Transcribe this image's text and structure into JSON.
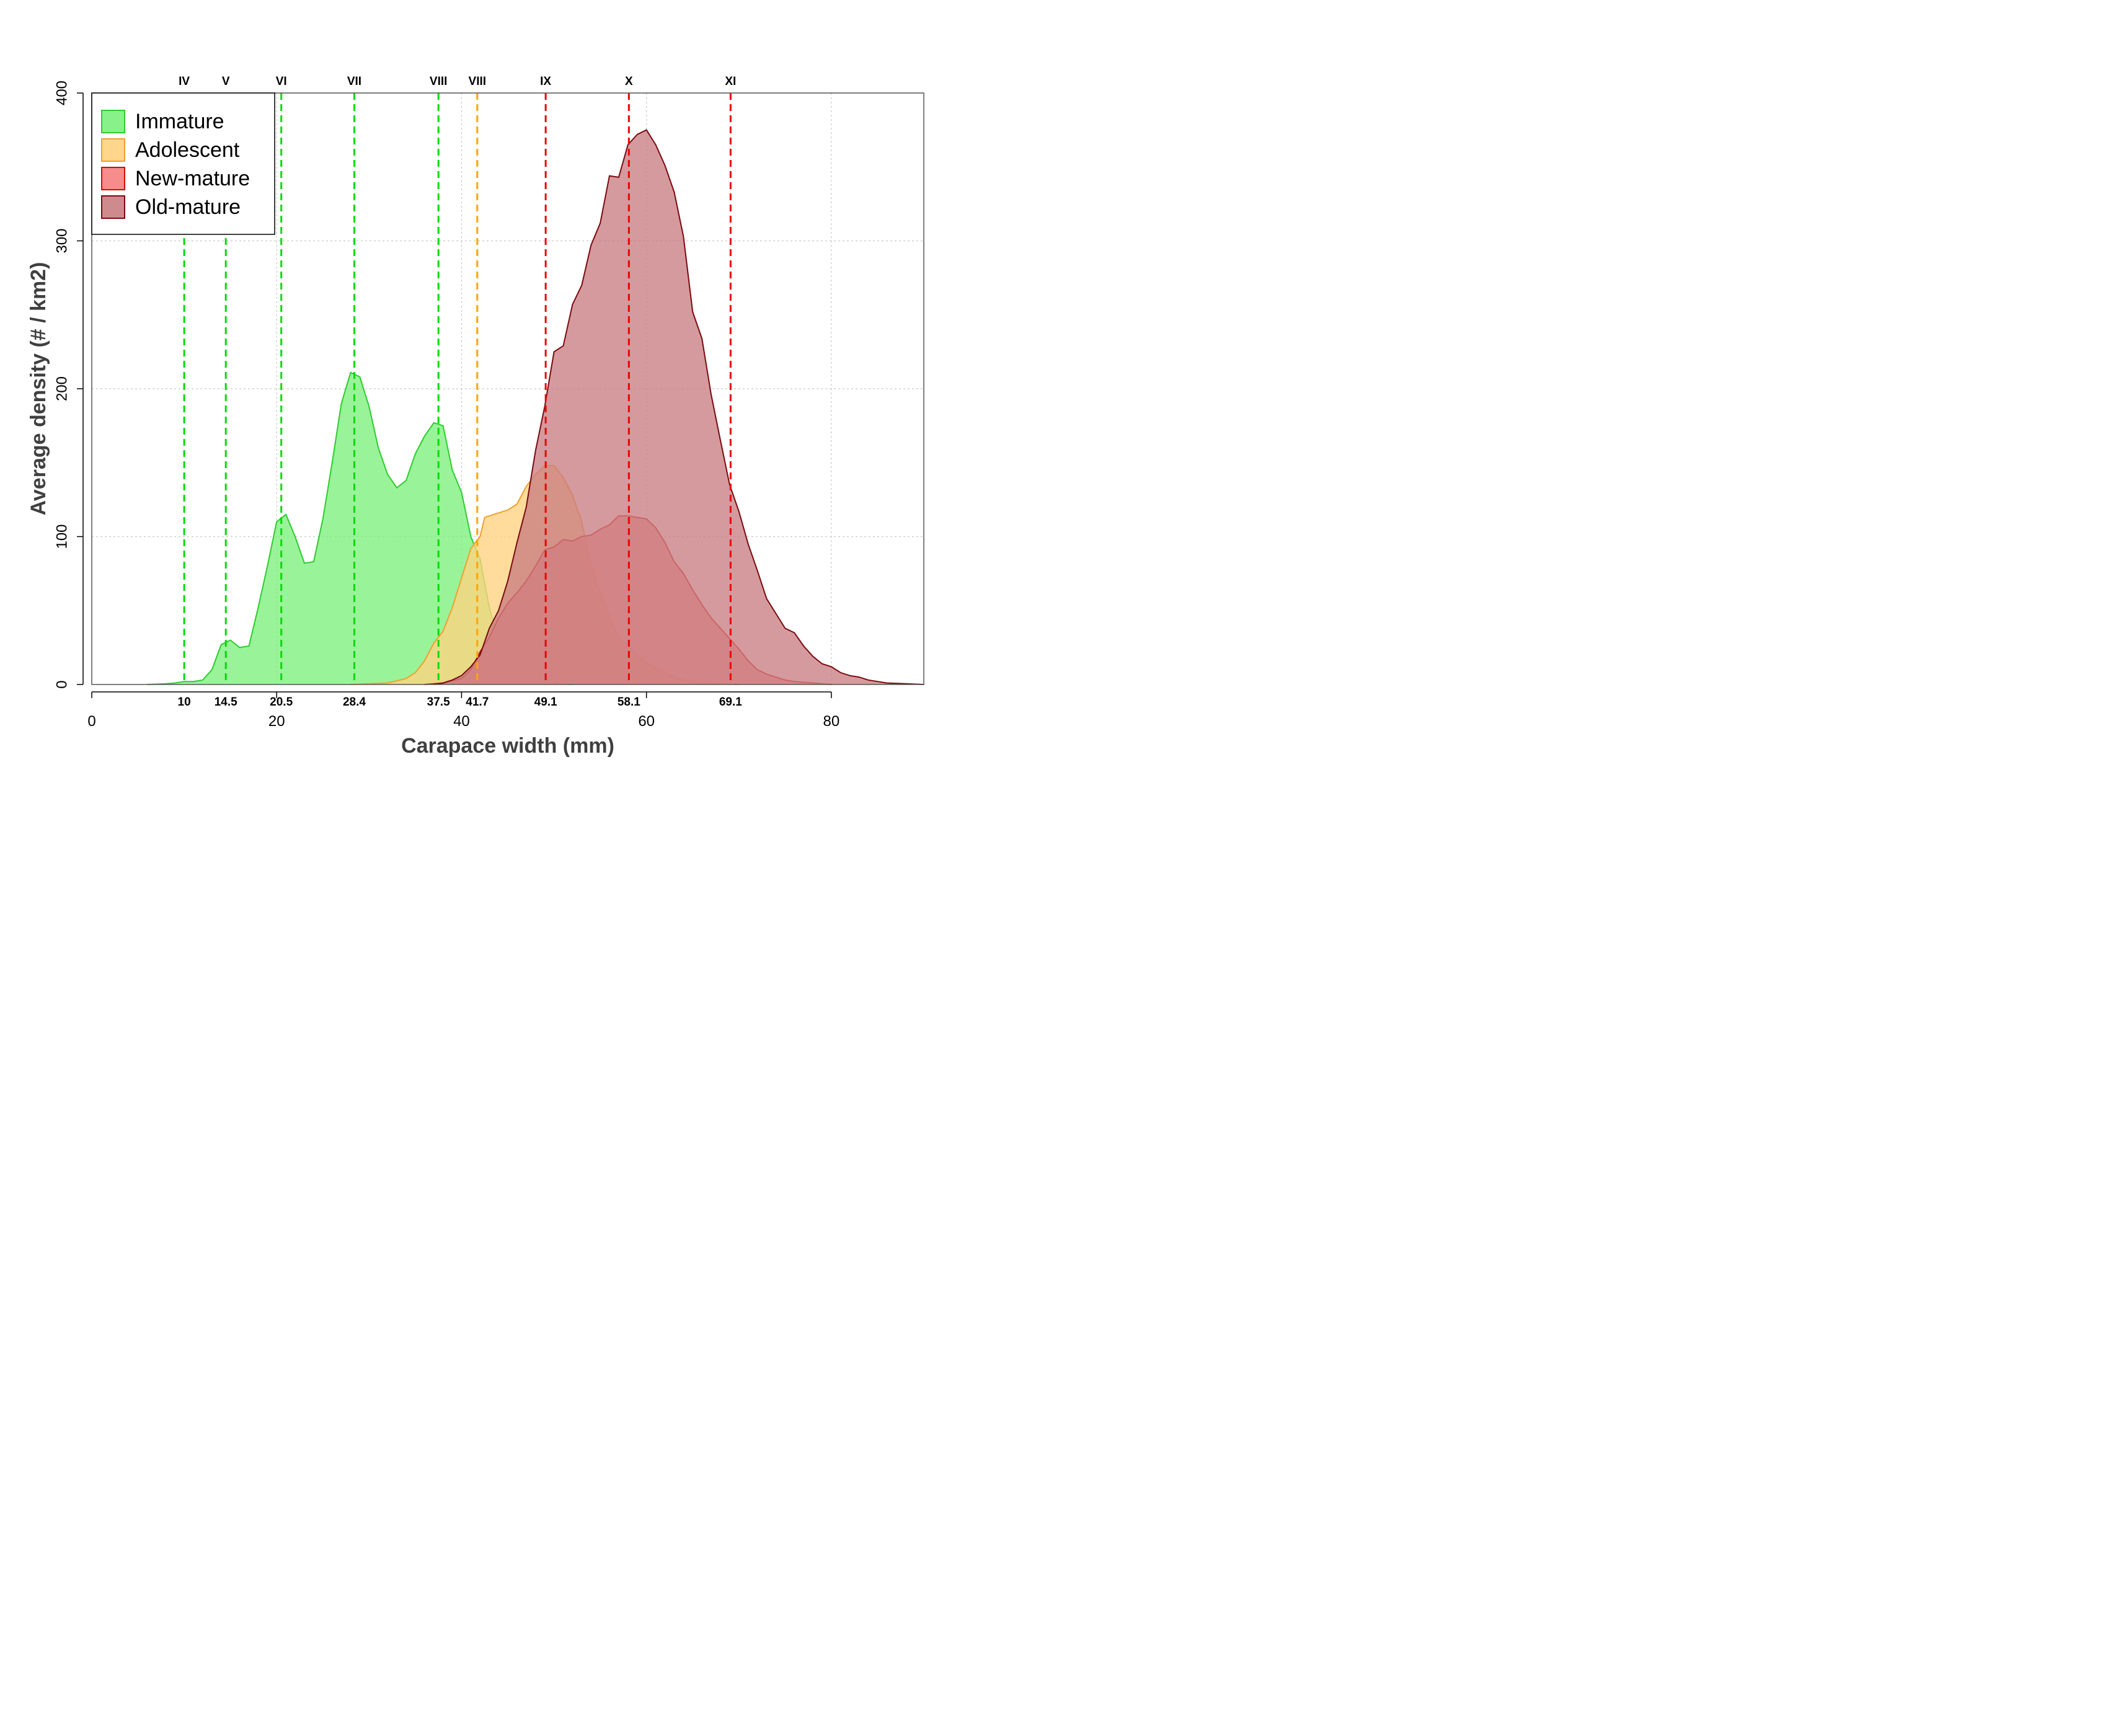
{
  "chart_data": {
    "type": "area",
    "xlabel": "Carapace width (mm)",
    "ylabel": "Average density (# / km2)",
    "xlim": [
      0,
      90
    ],
    "ylim": [
      0,
      400
    ],
    "x_ticks": [
      0,
      20,
      40,
      60,
      80
    ],
    "y_ticks": [
      0,
      100,
      200,
      300,
      400
    ],
    "grid": true,
    "legend_position": "top-left",
    "series": [
      {
        "name": "Immature",
        "fill": "#7CF07C",
        "line": "#2ECC2E",
        "points": [
          [
            6,
            0
          ],
          [
            8,
            0.5
          ],
          [
            9,
            1
          ],
          [
            10,
            2
          ],
          [
            11,
            2
          ],
          [
            12,
            3
          ],
          [
            13,
            10
          ],
          [
            14,
            27
          ],
          [
            15,
            30
          ],
          [
            16,
            25
          ],
          [
            17,
            26
          ],
          [
            18,
            52
          ],
          [
            19,
            80
          ],
          [
            20,
            110
          ],
          [
            21,
            115
          ],
          [
            22,
            100
          ],
          [
            23,
            82
          ],
          [
            24,
            83
          ],
          [
            25,
            112
          ],
          [
            26,
            150
          ],
          [
            27,
            190
          ],
          [
            28,
            211
          ],
          [
            29,
            208
          ],
          [
            30,
            188
          ],
          [
            31,
            160
          ],
          [
            32,
            142
          ],
          [
            33,
            133
          ],
          [
            34,
            138
          ],
          [
            35,
            156
          ],
          [
            36,
            168
          ],
          [
            37,
            177
          ],
          [
            38,
            175
          ],
          [
            39,
            145
          ],
          [
            40,
            130
          ],
          [
            41,
            100
          ],
          [
            42,
            85
          ],
          [
            43,
            52
          ],
          [
            44,
            30
          ],
          [
            45,
            18
          ],
          [
            46,
            10
          ],
          [
            47,
            5
          ],
          [
            48,
            3
          ],
          [
            49,
            1
          ],
          [
            50,
            0.5
          ],
          [
            52,
            0
          ]
        ]
      },
      {
        "name": "Adolescent",
        "fill": "#FFD27F",
        "line": "#F0A030",
        "points": [
          [
            28,
            0
          ],
          [
            30,
            0.5
          ],
          [
            32,
            1
          ],
          [
            34,
            4
          ],
          [
            35,
            8
          ],
          [
            36,
            16
          ],
          [
            37,
            28
          ],
          [
            38,
            36
          ],
          [
            39,
            52
          ],
          [
            40,
            72
          ],
          [
            41,
            92
          ],
          [
            42,
            100
          ],
          [
            42.5,
            113
          ],
          [
            44,
            116
          ],
          [
            45,
            118
          ],
          [
            46,
            122
          ],
          [
            47,
            134
          ],
          [
            48,
            142
          ],
          [
            49,
            148
          ],
          [
            50,
            148
          ],
          [
            51,
            140
          ],
          [
            52,
            128
          ],
          [
            53,
            110
          ],
          [
            54,
            80
          ],
          [
            55,
            62
          ],
          [
            56,
            46
          ],
          [
            57,
            32
          ],
          [
            58,
            26
          ],
          [
            59,
            20
          ],
          [
            60,
            15
          ],
          [
            61,
            11
          ],
          [
            62,
            8
          ],
          [
            63,
            5
          ],
          [
            64,
            3
          ],
          [
            66,
            1
          ],
          [
            68,
            0.5
          ],
          [
            70,
            0
          ]
        ]
      },
      {
        "name": "New-mature",
        "fill": "#F58080",
        "line": "#C81010",
        "points": [
          [
            36,
            0
          ],
          [
            38,
            1
          ],
          [
            40,
            4
          ],
          [
            41,
            10
          ],
          [
            42,
            22
          ],
          [
            43,
            32
          ],
          [
            44,
            45
          ],
          [
            45,
            55
          ],
          [
            46,
            62
          ],
          [
            47,
            70
          ],
          [
            48,
            80
          ],
          [
            49,
            91
          ],
          [
            50,
            93
          ],
          [
            51,
            98
          ],
          [
            52,
            97
          ],
          [
            53,
            100
          ],
          [
            54,
            101
          ],
          [
            55,
            105
          ],
          [
            56,
            108
          ],
          [
            57,
            114
          ],
          [
            58,
            114
          ],
          [
            59,
            113
          ],
          [
            60,
            112
          ],
          [
            61,
            106
          ],
          [
            62,
            96
          ],
          [
            63,
            83
          ],
          [
            64,
            75
          ],
          [
            65,
            64
          ],
          [
            66,
            54
          ],
          [
            67,
            45
          ],
          [
            68,
            38
          ],
          [
            69,
            31
          ],
          [
            70,
            24
          ],
          [
            71,
            16
          ],
          [
            72,
            10
          ],
          [
            73,
            7
          ],
          [
            74,
            5
          ],
          [
            75,
            3
          ],
          [
            76,
            2
          ],
          [
            78,
            1
          ],
          [
            80,
            0
          ]
        ]
      },
      {
        "name": "Old-mature",
        "fill": "#C97E82",
        "line": "#7A0A10",
        "points": [
          [
            37,
            0
          ],
          [
            38,
            1
          ],
          [
            39,
            3
          ],
          [
            40,
            6
          ],
          [
            41,
            12
          ],
          [
            42,
            20
          ],
          [
            43,
            38
          ],
          [
            44,
            50
          ],
          [
            45,
            70
          ],
          [
            46,
            96
          ],
          [
            47,
            120
          ],
          [
            48,
            158
          ],
          [
            49,
            188
          ],
          [
            50,
            225
          ],
          [
            51,
            229
          ],
          [
            52,
            257
          ],
          [
            53,
            270
          ],
          [
            54,
            297
          ],
          [
            55,
            312
          ],
          [
            56,
            344
          ],
          [
            57,
            343
          ],
          [
            58,
            365
          ],
          [
            59,
            372
          ],
          [
            60,
            375
          ],
          [
            61,
            365
          ],
          [
            62,
            351
          ],
          [
            63,
            333
          ],
          [
            64,
            303
          ],
          [
            65,
            252
          ],
          [
            66,
            234
          ],
          [
            67,
            196
          ],
          [
            68,
            165
          ],
          [
            69,
            135
          ],
          [
            70,
            117
          ],
          [
            71,
            95
          ],
          [
            72,
            77
          ],
          [
            73,
            58
          ],
          [
            74,
            48
          ],
          [
            75,
            38
          ],
          [
            76,
            35
          ],
          [
            77,
            26
          ],
          [
            78,
            19
          ],
          [
            79,
            14
          ],
          [
            80,
            12
          ],
          [
            81,
            8
          ],
          [
            82,
            6
          ],
          [
            83,
            5
          ],
          [
            84,
            3
          ],
          [
            85,
            2
          ],
          [
            86,
            1
          ],
          [
            88,
            0.5
          ],
          [
            90,
            0
          ]
        ]
      }
    ],
    "molt_lines": [
      {
        "stage": "IV",
        "x": 10,
        "label": "10",
        "color": "#00DD00"
      },
      {
        "stage": "V",
        "x": 14.5,
        "label": "14.5",
        "color": "#00DD00"
      },
      {
        "stage": "VI",
        "x": 20.5,
        "label": "20.5",
        "color": "#00DD00"
      },
      {
        "stage": "VII",
        "x": 28.4,
        "label": "28.4",
        "color": "#00DD00"
      },
      {
        "stage": "VIII",
        "x": 37.5,
        "label": "37.5",
        "color": "#00DD00"
      },
      {
        "stage": "VIII",
        "x": 41.7,
        "label": "41.7",
        "color": "#FFA500"
      },
      {
        "stage": "IX",
        "x": 49.1,
        "label": "49.1",
        "color": "#EE0000"
      },
      {
        "stage": "X",
        "x": 58.1,
        "label": "58.1",
        "color": "#EE0000"
      },
      {
        "stage": "XI",
        "x": 69.1,
        "label": "69.1",
        "color": "#EE0000"
      }
    ]
  }
}
